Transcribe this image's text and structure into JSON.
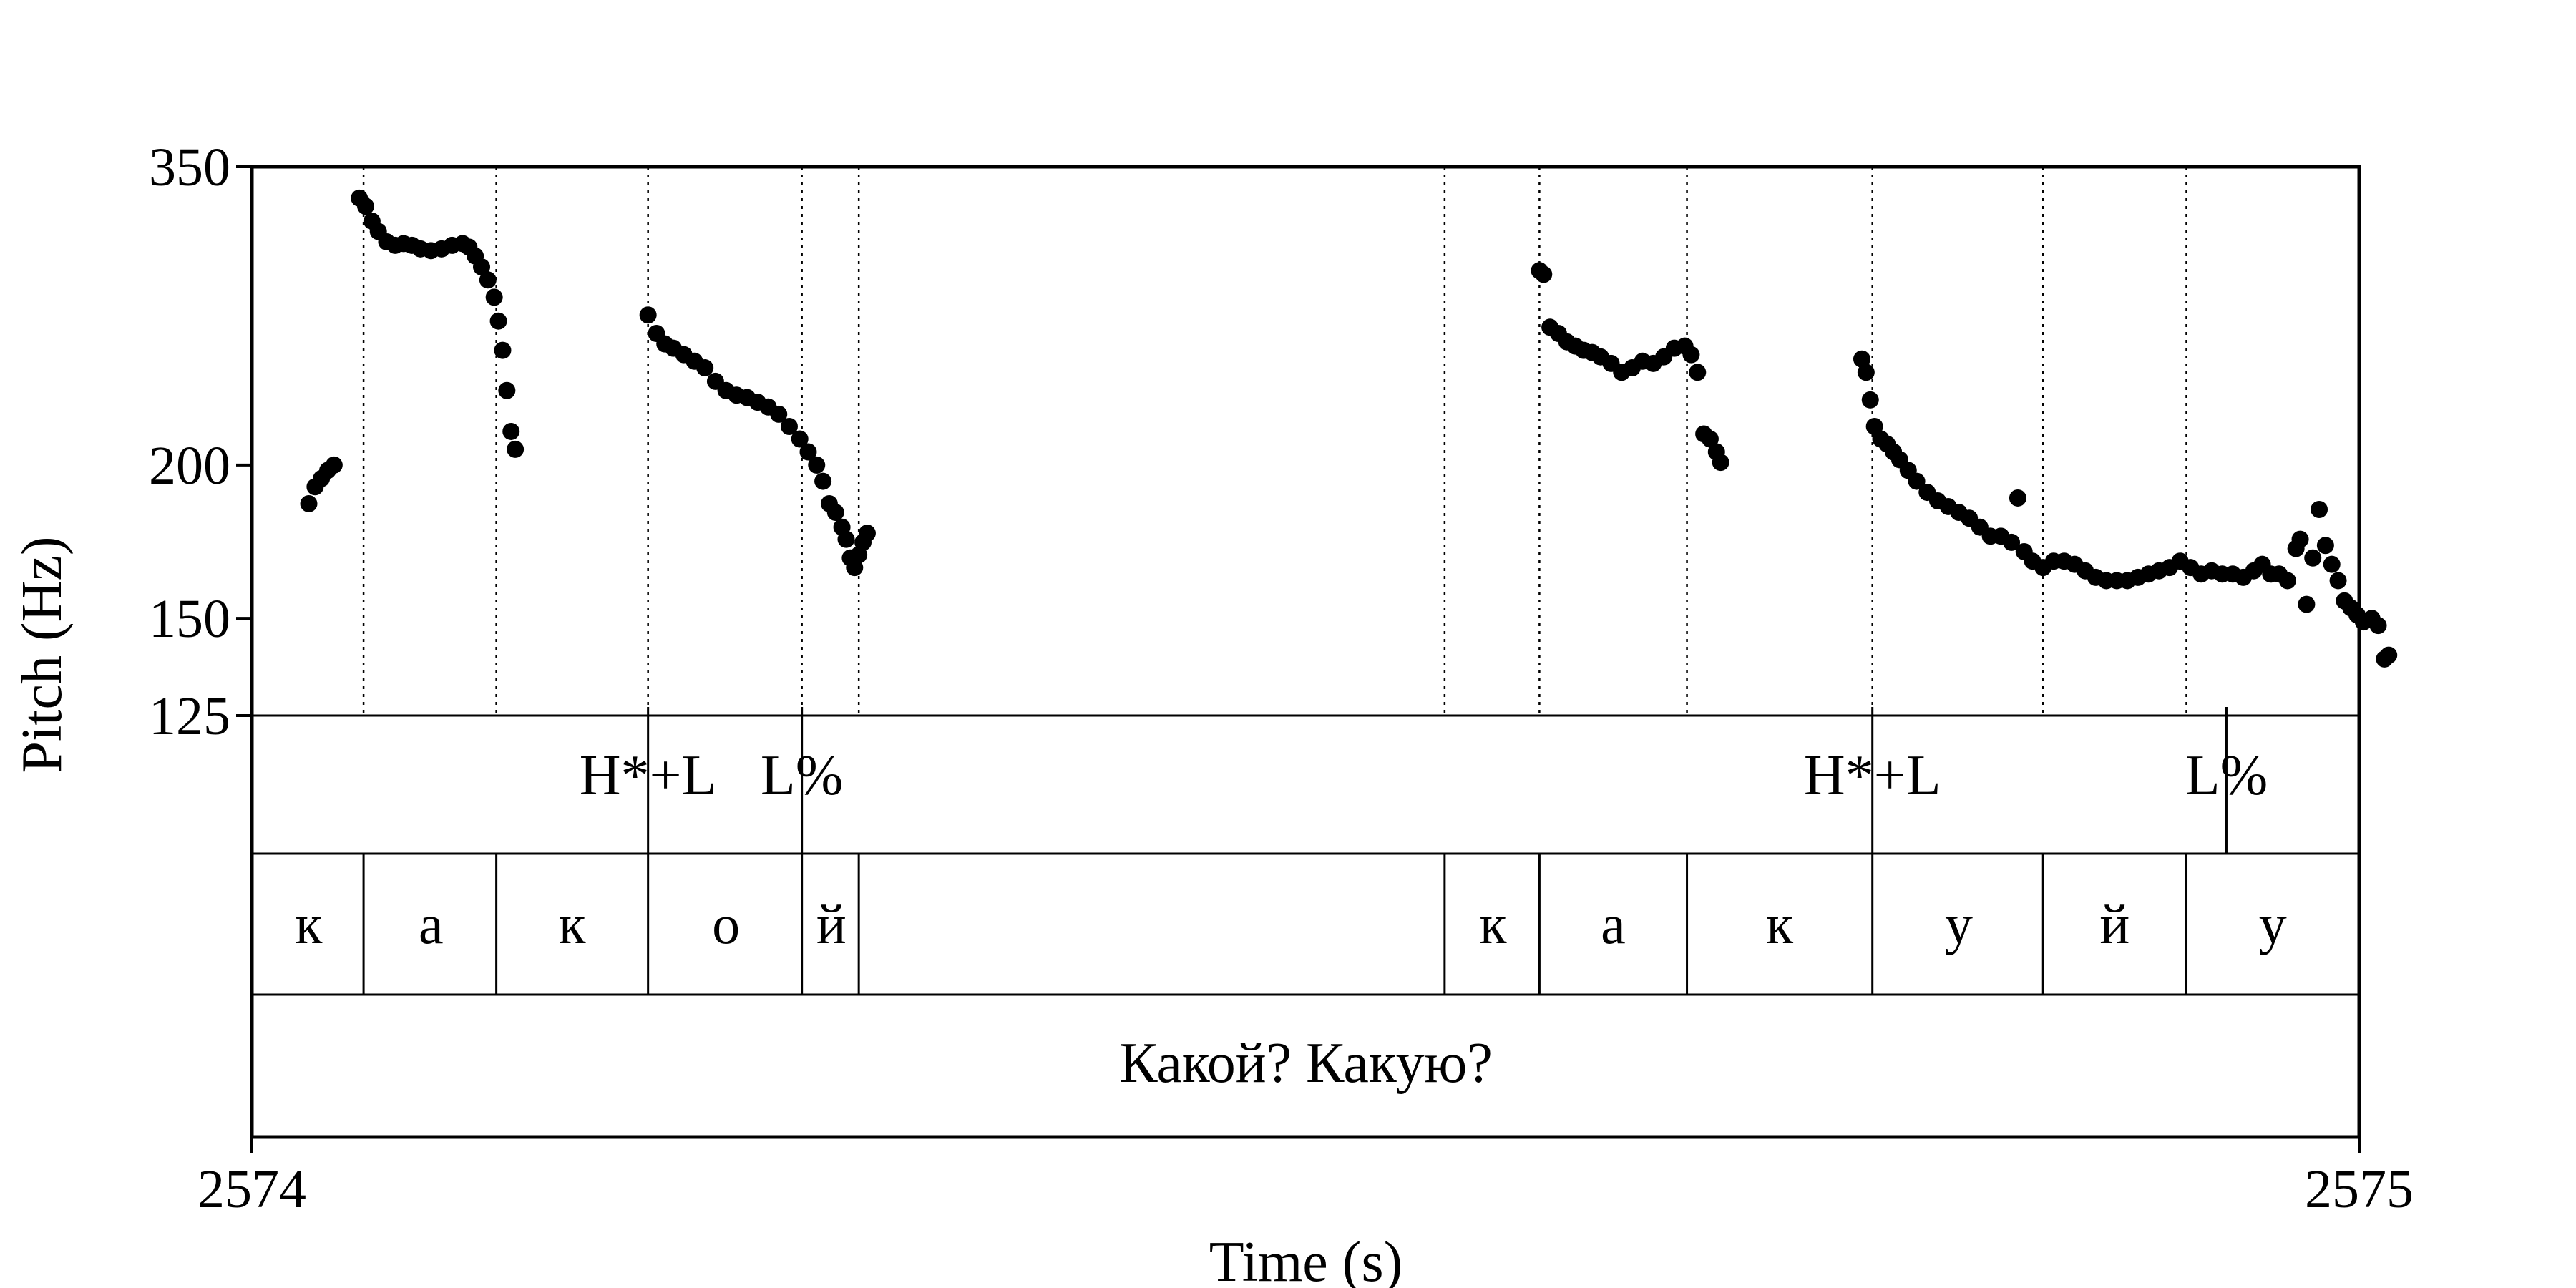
{
  "chart_data": {
    "type": "scatter",
    "xlabel": "Time (s)",
    "ylabel": "Pitch (Hz)",
    "xlim": [
      2574,
      2575
    ],
    "ylim": [
      125,
      350
    ],
    "y_scale": "log",
    "x_ticks": [
      {
        "value": 2574,
        "label": "2574"
      },
      {
        "value": 2575,
        "label": "2575"
      }
    ],
    "y_ticks": [
      {
        "value": 350,
        "label": "350"
      },
      {
        "value": 200,
        "label": "200"
      },
      {
        "value": 150,
        "label": "150"
      },
      {
        "value": 125,
        "label": "125"
      }
    ],
    "pitch_segments": [
      {
        "pts": [
          [
            2574.027,
            186
          ],
          [
            2574.03,
            192
          ],
          [
            2574.033,
            195
          ],
          [
            2574.036,
            198
          ],
          [
            2574.039,
            200
          ]
        ]
      },
      {
        "pts": [
          [
            2574.051,
            330
          ],
          [
            2574.054,
            325
          ],
          [
            2574.057,
            316
          ],
          [
            2574.06,
            310
          ],
          [
            2574.064,
            304
          ],
          [
            2574.068,
            302
          ],
          [
            2574.072,
            303
          ],
          [
            2574.076,
            302
          ],
          [
            2574.08,
            300
          ],
          [
            2574.085,
            299
          ],
          [
            2574.09,
            300
          ],
          [
            2574.095,
            302
          ],
          [
            2574.1,
            303
          ],
          [
            2574.103,
            301
          ],
          [
            2574.106,
            296
          ],
          [
            2574.109,
            290
          ],
          [
            2574.112,
            283
          ],
          [
            2574.115,
            274
          ],
          [
            2574.117,
            262
          ],
          [
            2574.119,
            248
          ],
          [
            2574.121,
            230
          ],
          [
            2574.123,
            213
          ],
          [
            2574.125,
            206
          ]
        ]
      },
      {
        "pts": [
          [
            2574.188,
            265
          ],
          [
            2574.192,
            256
          ],
          [
            2574.196,
            251
          ],
          [
            2574.2,
            249
          ],
          [
            2574.205,
            246
          ],
          [
            2574.21,
            243
          ],
          [
            2574.215,
            240
          ],
          [
            2574.22,
            234
          ],
          [
            2574.225,
            230
          ],
          [
            2574.23,
            228
          ],
          [
            2574.235,
            227
          ],
          [
            2574.24,
            225
          ],
          [
            2574.245,
            223
          ],
          [
            2574.25,
            220
          ],
          [
            2574.255,
            215
          ],
          [
            2574.26,
            210
          ],
          [
            2574.264,
            205
          ],
          [
            2574.268,
            200
          ],
          [
            2574.271,
            194
          ],
          [
            2574.274,
            186
          ],
          [
            2574.277,
            183
          ],
          [
            2574.28,
            178
          ],
          [
            2574.282,
            174
          ],
          [
            2574.284,
            168
          ],
          [
            2574.286,
            165
          ],
          [
            2574.288,
            169
          ],
          [
            2574.29,
            173
          ],
          [
            2574.292,
            176
          ]
        ]
      },
      {
        "pts": [
          [
            2574.611,
            288
          ],
          [
            2574.613,
            286
          ],
          [
            2574.616,
            259
          ],
          [
            2574.62,
            256
          ],
          [
            2574.624,
            252
          ],
          [
            2574.628,
            250
          ],
          [
            2574.632,
            248
          ],
          [
            2574.636,
            247
          ],
          [
            2574.64,
            245
          ],
          [
            2574.645,
            242
          ],
          [
            2574.65,
            238
          ],
          [
            2574.655,
            240
          ],
          [
            2574.66,
            243
          ],
          [
            2574.665,
            242
          ],
          [
            2574.67,
            245
          ],
          [
            2574.675,
            249
          ],
          [
            2574.68,
            250
          ],
          [
            2574.683,
            246
          ],
          [
            2574.686,
            238
          ],
          [
            2574.689,
            212
          ],
          [
            2574.692,
            210
          ],
          [
            2574.695,
            205
          ],
          [
            2574.697,
            201
          ]
        ]
      },
      {
        "pts": [
          [
            2574.764,
            244
          ],
          [
            2574.766,
            238
          ],
          [
            2574.768,
            226
          ],
          [
            2574.77,
            215
          ],
          [
            2574.773,
            210
          ],
          [
            2574.776,
            208
          ],
          [
            2574.779,
            205
          ],
          [
            2574.782,
            202
          ],
          [
            2574.786,
            198
          ],
          [
            2574.79,
            194
          ],
          [
            2574.795,
            190
          ],
          [
            2574.8,
            187
          ],
          [
            2574.805,
            185
          ],
          [
            2574.81,
            183
          ],
          [
            2574.815,
            181
          ],
          [
            2574.82,
            178
          ],
          [
            2574.825,
            175
          ],
          [
            2574.83,
            175
          ],
          [
            2574.835,
            173
          ],
          [
            2574.838,
            188
          ],
          [
            2574.841,
            170
          ],
          [
            2574.845,
            167
          ],
          [
            2574.85,
            165
          ],
          [
            2574.855,
            167
          ],
          [
            2574.86,
            167
          ],
          [
            2574.865,
            166
          ],
          [
            2574.87,
            164
          ],
          [
            2574.875,
            162
          ],
          [
            2574.88,
            161
          ],
          [
            2574.885,
            161
          ],
          [
            2574.89,
            161
          ],
          [
            2574.895,
            162
          ],
          [
            2574.9,
            163
          ],
          [
            2574.905,
            164
          ],
          [
            2574.91,
            165
          ],
          [
            2574.915,
            167
          ],
          [
            2574.92,
            165
          ],
          [
            2574.925,
            163
          ],
          [
            2574.93,
            164
          ],
          [
            2574.935,
            163
          ],
          [
            2574.94,
            163
          ],
          [
            2574.945,
            162
          ],
          [
            2574.95,
            164
          ],
          [
            2574.954,
            166
          ],
          [
            2574.958,
            163
          ],
          [
            2574.962,
            163
          ],
          [
            2574.966,
            161
          ],
          [
            2574.97,
            171
          ],
          [
            2574.972,
            174
          ],
          [
            2574.975,
            154
          ],
          [
            2574.978,
            168
          ],
          [
            2574.981,
            184
          ],
          [
            2574.984,
            172
          ],
          [
            2574.987,
            166
          ],
          [
            2574.99,
            161
          ],
          [
            2574.993,
            155
          ],
          [
            2574.996,
            153
          ],
          [
            2574.999,
            151
          ],
          [
            2575.002,
            149
          ],
          [
            2575.006,
            150
          ],
          [
            2575.009,
            148
          ],
          [
            2575.012,
            139
          ],
          [
            2575.014,
            140
          ]
        ]
      }
    ],
    "tone_tier": {
      "boundaries": [
        2574.188,
        2574.261,
        2574.769,
        2574.937
      ],
      "labels": [
        {
          "t": 2574.188,
          "text": "H*+L"
        },
        {
          "t": 2574.261,
          "text": "L%"
        },
        {
          "t": 2574.769,
          "text": "H*+L"
        },
        {
          "t": 2574.937,
          "text": "L%"
        }
      ]
    },
    "segment_tier": {
      "boundaries": [
        2574.053,
        2574.116,
        2574.188,
        2574.261,
        2574.288,
        2574.566,
        2574.611,
        2574.681,
        2574.769,
        2574.85,
        2574.918
      ],
      "labels": [
        {
          "t": 2574.027,
          "text": "к"
        },
        {
          "t": 2574.085,
          "text": "а"
        },
        {
          "t": 2574.152,
          "text": "к"
        },
        {
          "t": 2574.225,
          "text": "о"
        },
        {
          "t": 2574.275,
          "text": "й"
        },
        {
          "t": 2574.589,
          "text": "к"
        },
        {
          "t": 2574.646,
          "text": "а"
        },
        {
          "t": 2574.725,
          "text": "к"
        },
        {
          "t": 2574.81,
          "text": "у"
        },
        {
          "t": 2574.884,
          "text": "й"
        },
        {
          "t": 2574.959,
          "text": "у"
        }
      ]
    },
    "sentence_tier": {
      "text": "Какой? Какую?"
    }
  }
}
